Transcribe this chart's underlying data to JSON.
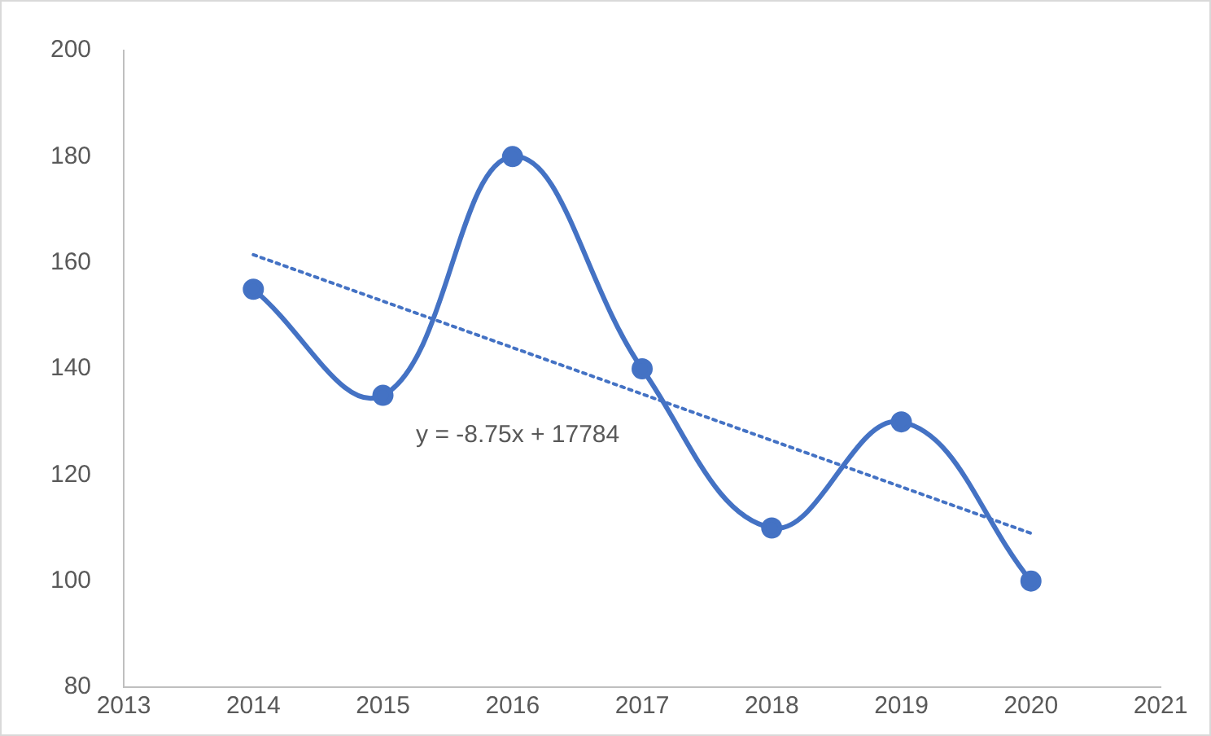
{
  "chart_data": {
    "type": "line",
    "x": [
      2014,
      2015,
      2016,
      2017,
      2018,
      2019,
      2020
    ],
    "series": [
      {
        "type": "line",
        "color": "#4472c4",
        "values": [
          155,
          135,
          180,
          140,
          110,
          130,
          100
        ],
        "marker": "circle",
        "line_style": "solid"
      },
      {
        "type": "line",
        "color": "#4472c4",
        "x": [
          2014,
          2020
        ],
        "values": [
          161.5,
          109
        ],
        "marker": "none",
        "line_style": "dotted"
      }
    ],
    "xlim": [
      2013,
      2021
    ],
    "xticks": [
      2013,
      2014,
      2015,
      2016,
      2017,
      2018,
      2019,
      2020,
      2021
    ],
    "ylim": [
      80,
      200
    ],
    "yticks": [
      80,
      100,
      120,
      140,
      160,
      180,
      200
    ],
    "legend": false,
    "annotations": [
      "y = -8.75x + 17784"
    ]
  }
}
